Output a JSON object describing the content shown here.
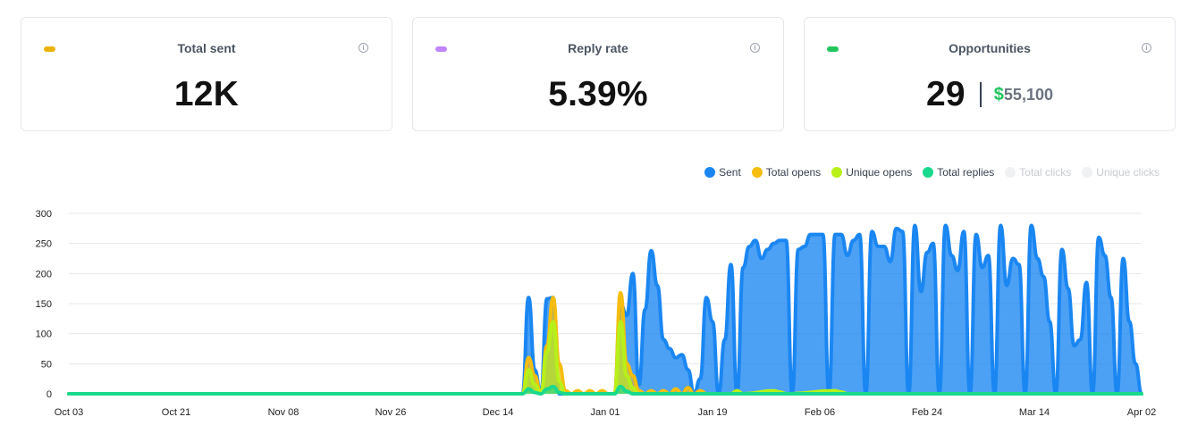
{
  "cards": [
    {
      "title": "Total sent",
      "value": "12K",
      "color": "#eab308"
    },
    {
      "title": "Reply rate",
      "value": "5.39%",
      "color": "#c084fc"
    },
    {
      "title": "Opportunities",
      "value": "29",
      "dollar": "$",
      "amount": "55,100",
      "color": "#22c55e"
    }
  ],
  "chart_data": {
    "type": "area",
    "x": [
      "Oct 03",
      "Oct 21",
      "Nov 08",
      "Nov 26",
      "Dec 14",
      "Jan 01",
      "Jan 19",
      "Feb 06",
      "Feb 24",
      "Mar 14",
      "Apr 02"
    ],
    "x_tick_labels": [
      "Oct 03",
      "Oct 21",
      "Nov 08",
      "Nov 26",
      "Dec 14",
      "Jan 01",
      "Jan 19",
      "Feb 06",
      "Feb 24",
      "Mar 14",
      "Apr 02"
    ],
    "y_ticks": [
      0,
      50,
      100,
      150,
      200,
      250,
      300
    ],
    "ylim": [
      0,
      300
    ],
    "grid": true,
    "legend_position": "top-right",
    "legend": [
      {
        "name": "Sent",
        "color": "#1a86f2",
        "active": true
      },
      {
        "name": "Total opens",
        "color": "#f5bd0f",
        "active": true
      },
      {
        "name": "Unique opens",
        "color": "#b8f01a",
        "active": true
      },
      {
        "name": "Total replies",
        "color": "#1ad98c",
        "active": true
      },
      {
        "name": "Total clicks",
        "color": "#f0f1f3",
        "active": false
      },
      {
        "name": "Unique clicks",
        "color": "#f0f1f3",
        "active": false
      }
    ],
    "series": [
      {
        "name": "Sent",
        "color": "#1a86f2",
        "points": [
          [
            0,
            0
          ],
          [
            74,
            0
          ],
          [
            75,
            160
          ],
          [
            76,
            40
          ],
          [
            77,
            0
          ],
          [
            78,
            158
          ],
          [
            79,
            160
          ],
          [
            80,
            0
          ],
          [
            89,
            0
          ],
          [
            90,
            150
          ],
          [
            91,
            130
          ],
          [
            92,
            200
          ],
          [
            93,
            15
          ],
          [
            94,
            140
          ],
          [
            95,
            238
          ],
          [
            96,
            180
          ],
          [
            97,
            90
          ],
          [
            98,
            75
          ],
          [
            99,
            60
          ],
          [
            100,
            65
          ],
          [
            101,
            40
          ],
          [
            102,
            0
          ],
          [
            103,
            25
          ],
          [
            104,
            160
          ],
          [
            105,
            120
          ],
          [
            106,
            0
          ],
          [
            107,
            90
          ],
          [
            108,
            215
          ],
          [
            109,
            0
          ],
          [
            110,
            210
          ],
          [
            111,
            245
          ],
          [
            112,
            255
          ],
          [
            113,
            225
          ],
          [
            114,
            240
          ],
          [
            115,
            250
          ],
          [
            116,
            255
          ],
          [
            117,
            255
          ],
          [
            118,
            0
          ],
          [
            119,
            240
          ],
          [
            120,
            245
          ],
          [
            121,
            265
          ],
          [
            122,
            265
          ],
          [
            123,
            265
          ],
          [
            124,
            0
          ],
          [
            125,
            265
          ],
          [
            126,
            265
          ],
          [
            127,
            230
          ],
          [
            128,
            255
          ],
          [
            129,
            265
          ],
          [
            130,
            0
          ],
          [
            131,
            270
          ],
          [
            132,
            245
          ],
          [
            133,
            245
          ],
          [
            134,
            220
          ],
          [
            135,
            275
          ],
          [
            136,
            270
          ],
          [
            137,
            0
          ],
          [
            138,
            280
          ],
          [
            139,
            170
          ],
          [
            140,
            235
          ],
          [
            141,
            250
          ],
          [
            142,
            0
          ],
          [
            143,
            280
          ],
          [
            144,
            230
          ],
          [
            145,
            205
          ],
          [
            146,
            270
          ],
          [
            147,
            0
          ],
          [
            148,
            265
          ],
          [
            149,
            210
          ],
          [
            150,
            230
          ],
          [
            151,
            0
          ],
          [
            152,
            280
          ],
          [
            153,
            180
          ],
          [
            154,
            225
          ],
          [
            155,
            215
          ],
          [
            156,
            0
          ],
          [
            157,
            280
          ],
          [
            158,
            225
          ],
          [
            159,
            195
          ],
          [
            160,
            120
          ],
          [
            161,
            0
          ],
          [
            162,
            240
          ],
          [
            163,
            175
          ],
          [
            164,
            80
          ],
          [
            165,
            90
          ],
          [
            166,
            185
          ],
          [
            167,
            0
          ],
          [
            168,
            260
          ],
          [
            169,
            230
          ],
          [
            170,
            160
          ],
          [
            171,
            0
          ],
          [
            172,
            225
          ],
          [
            173,
            120
          ],
          [
            174,
            50
          ],
          [
            175,
            0
          ]
        ]
      },
      {
        "name": "Total opens",
        "color": "#f5bd0f",
        "points": [
          [
            0,
            0
          ],
          [
            74,
            0
          ],
          [
            75,
            60
          ],
          [
            76,
            30
          ],
          [
            77,
            0
          ],
          [
            78,
            80
          ],
          [
            79,
            160
          ],
          [
            80,
            50
          ],
          [
            81,
            5
          ],
          [
            82,
            0
          ],
          [
            83,
            5
          ],
          [
            84,
            0
          ],
          [
            85,
            5
          ],
          [
            86,
            0
          ],
          [
            87,
            5
          ],
          [
            88,
            0
          ],
          [
            89,
            0
          ],
          [
            90,
            168
          ],
          [
            91,
            50
          ],
          [
            92,
            30
          ],
          [
            93,
            5
          ],
          [
            94,
            0
          ],
          [
            95,
            5
          ],
          [
            96,
            0
          ],
          [
            97,
            5
          ],
          [
            98,
            0
          ],
          [
            99,
            8
          ],
          [
            100,
            0
          ],
          [
            101,
            10
          ],
          [
            102,
            0
          ],
          [
            103,
            5
          ],
          [
            104,
            0
          ],
          [
            175,
            0
          ]
        ]
      },
      {
        "name": "Unique opens",
        "color": "#b8f01a",
        "points": [
          [
            0,
            0
          ],
          [
            74,
            0
          ],
          [
            75,
            40
          ],
          [
            76,
            15
          ],
          [
            77,
            0
          ],
          [
            78,
            70
          ],
          [
            79,
            120
          ],
          [
            80,
            20
          ],
          [
            81,
            0
          ],
          [
            89,
            0
          ],
          [
            90,
            120
          ],
          [
            91,
            30
          ],
          [
            92,
            10
          ],
          [
            93,
            0
          ],
          [
            108,
            0
          ],
          [
            109,
            5
          ],
          [
            110,
            0
          ],
          [
            115,
            5
          ],
          [
            116,
            3
          ],
          [
            117,
            0
          ],
          [
            125,
            5
          ],
          [
            126,
            3
          ],
          [
            127,
            0
          ],
          [
            175,
            0
          ]
        ]
      },
      {
        "name": "Total replies",
        "color": "#1ad98c",
        "points": [
          [
            0,
            0
          ],
          [
            74,
            0
          ],
          [
            75,
            8
          ],
          [
            76,
            2
          ],
          [
            77,
            0
          ],
          [
            78,
            8
          ],
          [
            79,
            12
          ],
          [
            80,
            2
          ],
          [
            81,
            0
          ],
          [
            89,
            0
          ],
          [
            90,
            12
          ],
          [
            91,
            4
          ],
          [
            92,
            0
          ],
          [
            175,
            0
          ]
        ]
      }
    ]
  }
}
